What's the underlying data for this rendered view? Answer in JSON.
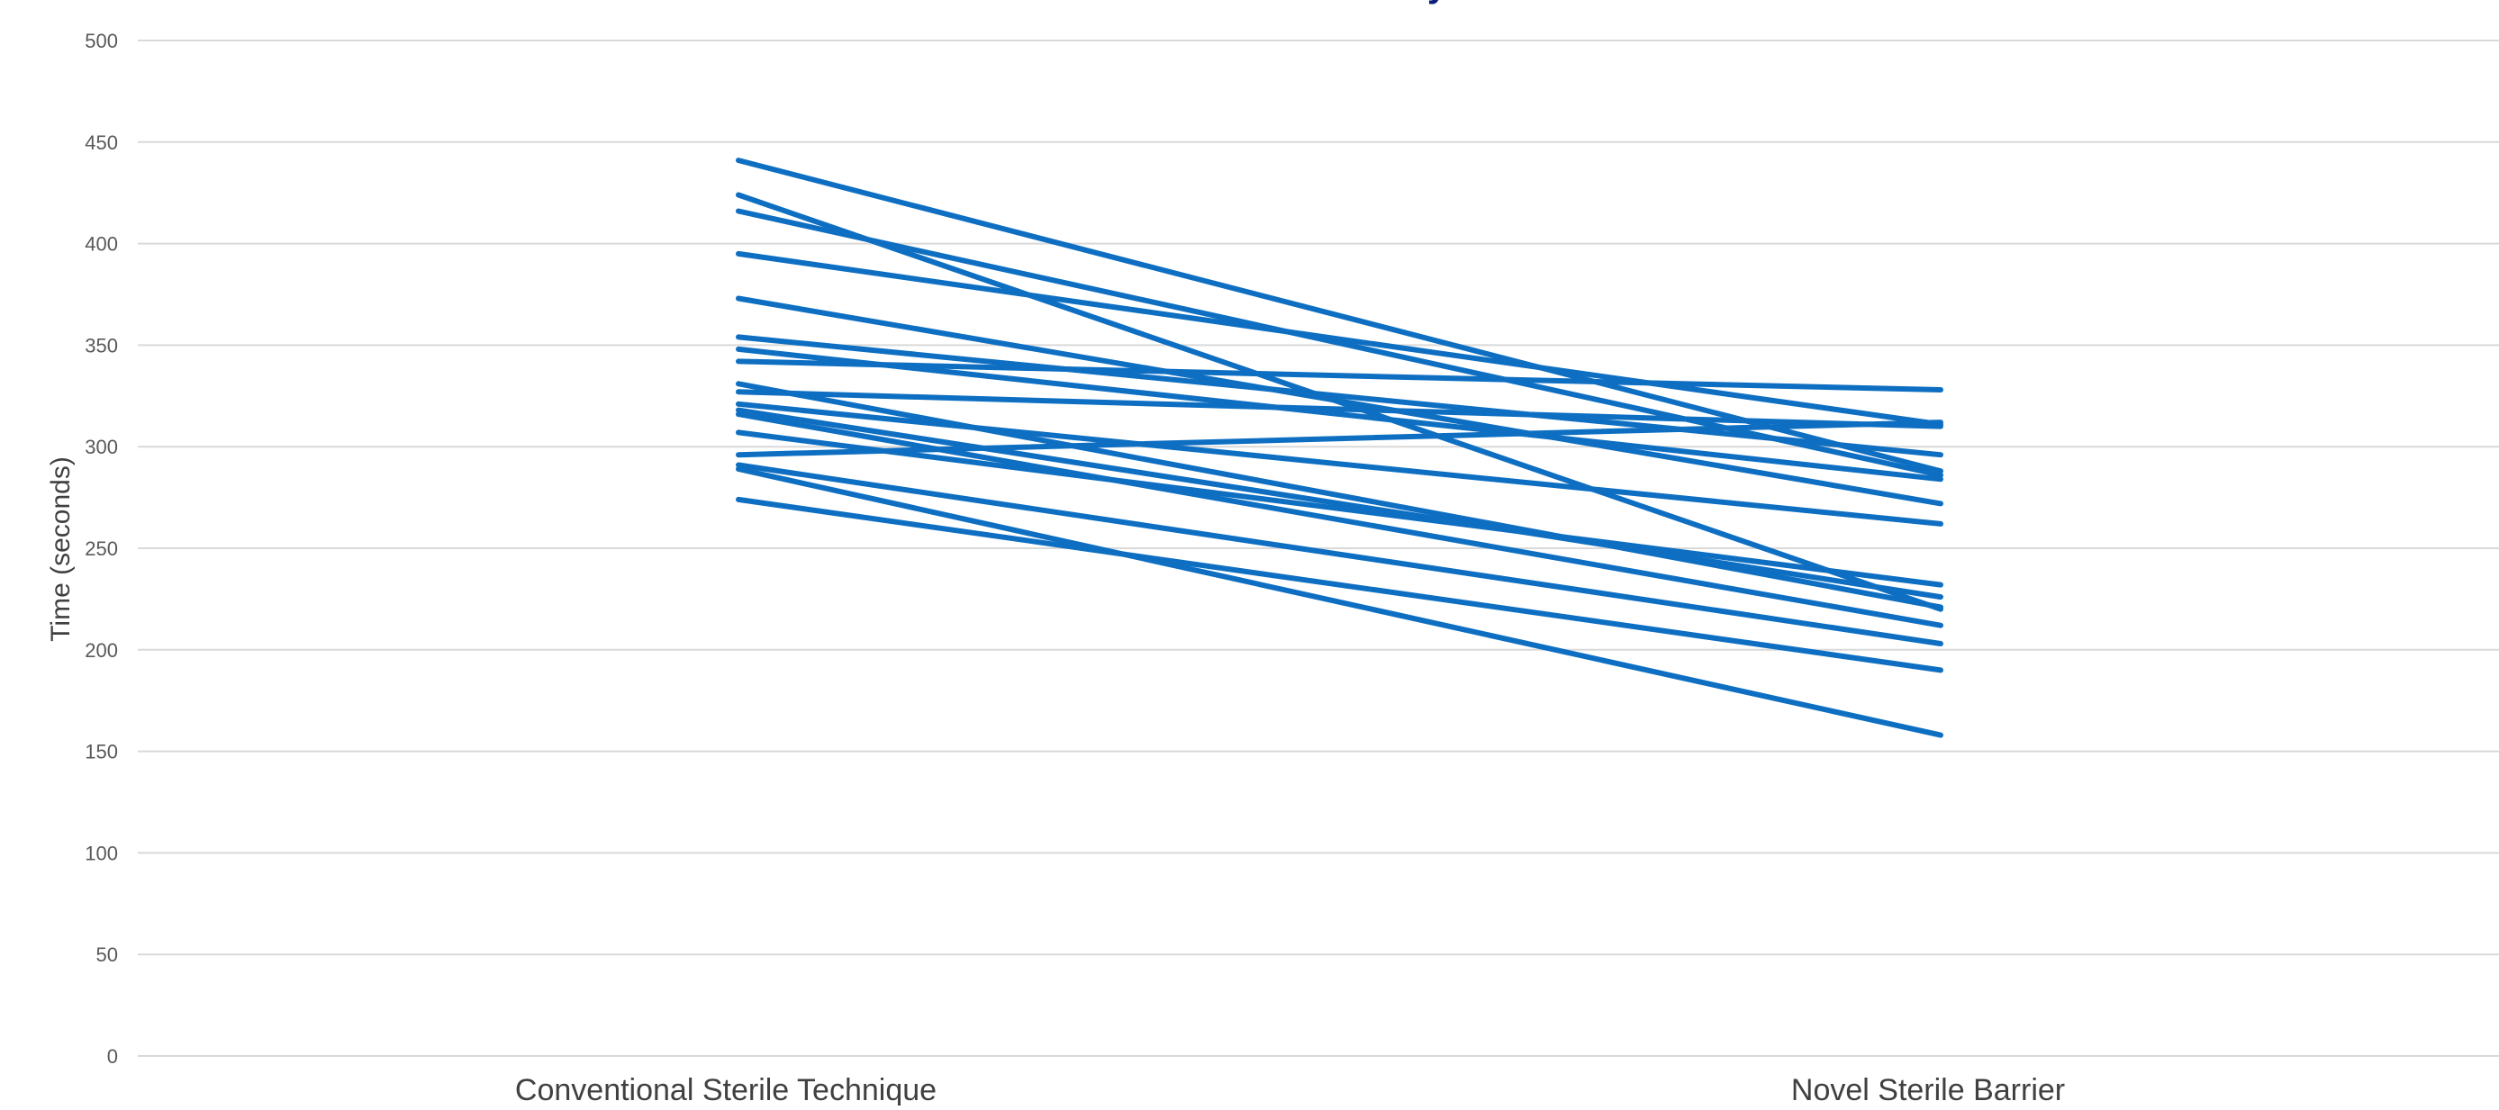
{
  "chart_data": {
    "type": "line",
    "title_fragment": "y",
    "ylabel": "Time (seconds)",
    "xlabel": "",
    "categories": [
      "Conventional Sterile Technique",
      "Novel Sterile Barrier"
    ],
    "ylim": [
      0,
      500
    ],
    "y_ticks": [
      0,
      50,
      100,
      150,
      200,
      250,
      300,
      350,
      400,
      450,
      500
    ],
    "grid": true,
    "legend": "none",
    "series_color": "#0e6fc2",
    "title_color": "#0b1f7a",
    "series": [
      {
        "values": [
          441,
          288
        ]
      },
      {
        "values": [
          424,
          220
        ]
      },
      {
        "values": [
          416,
          286
        ]
      },
      {
        "values": [
          395,
          311
        ]
      },
      {
        "values": [
          373,
          272
        ]
      },
      {
        "values": [
          354,
          296
        ]
      },
      {
        "values": [
          348,
          284
        ]
      },
      {
        "values": [
          342,
          328
        ]
      },
      {
        "values": [
          331,
          221
        ]
      },
      {
        "values": [
          327,
          310
        ]
      },
      {
        "values": [
          321,
          262
        ]
      },
      {
        "values": [
          318,
          226
        ]
      },
      {
        "values": [
          316,
          212
        ]
      },
      {
        "values": [
          307,
          232
        ]
      },
      {
        "values": [
          296,
          312
        ]
      },
      {
        "values": [
          291,
          203
        ]
      },
      {
        "values": [
          289,
          158
        ]
      },
      {
        "values": [
          274,
          190
        ]
      }
    ]
  }
}
